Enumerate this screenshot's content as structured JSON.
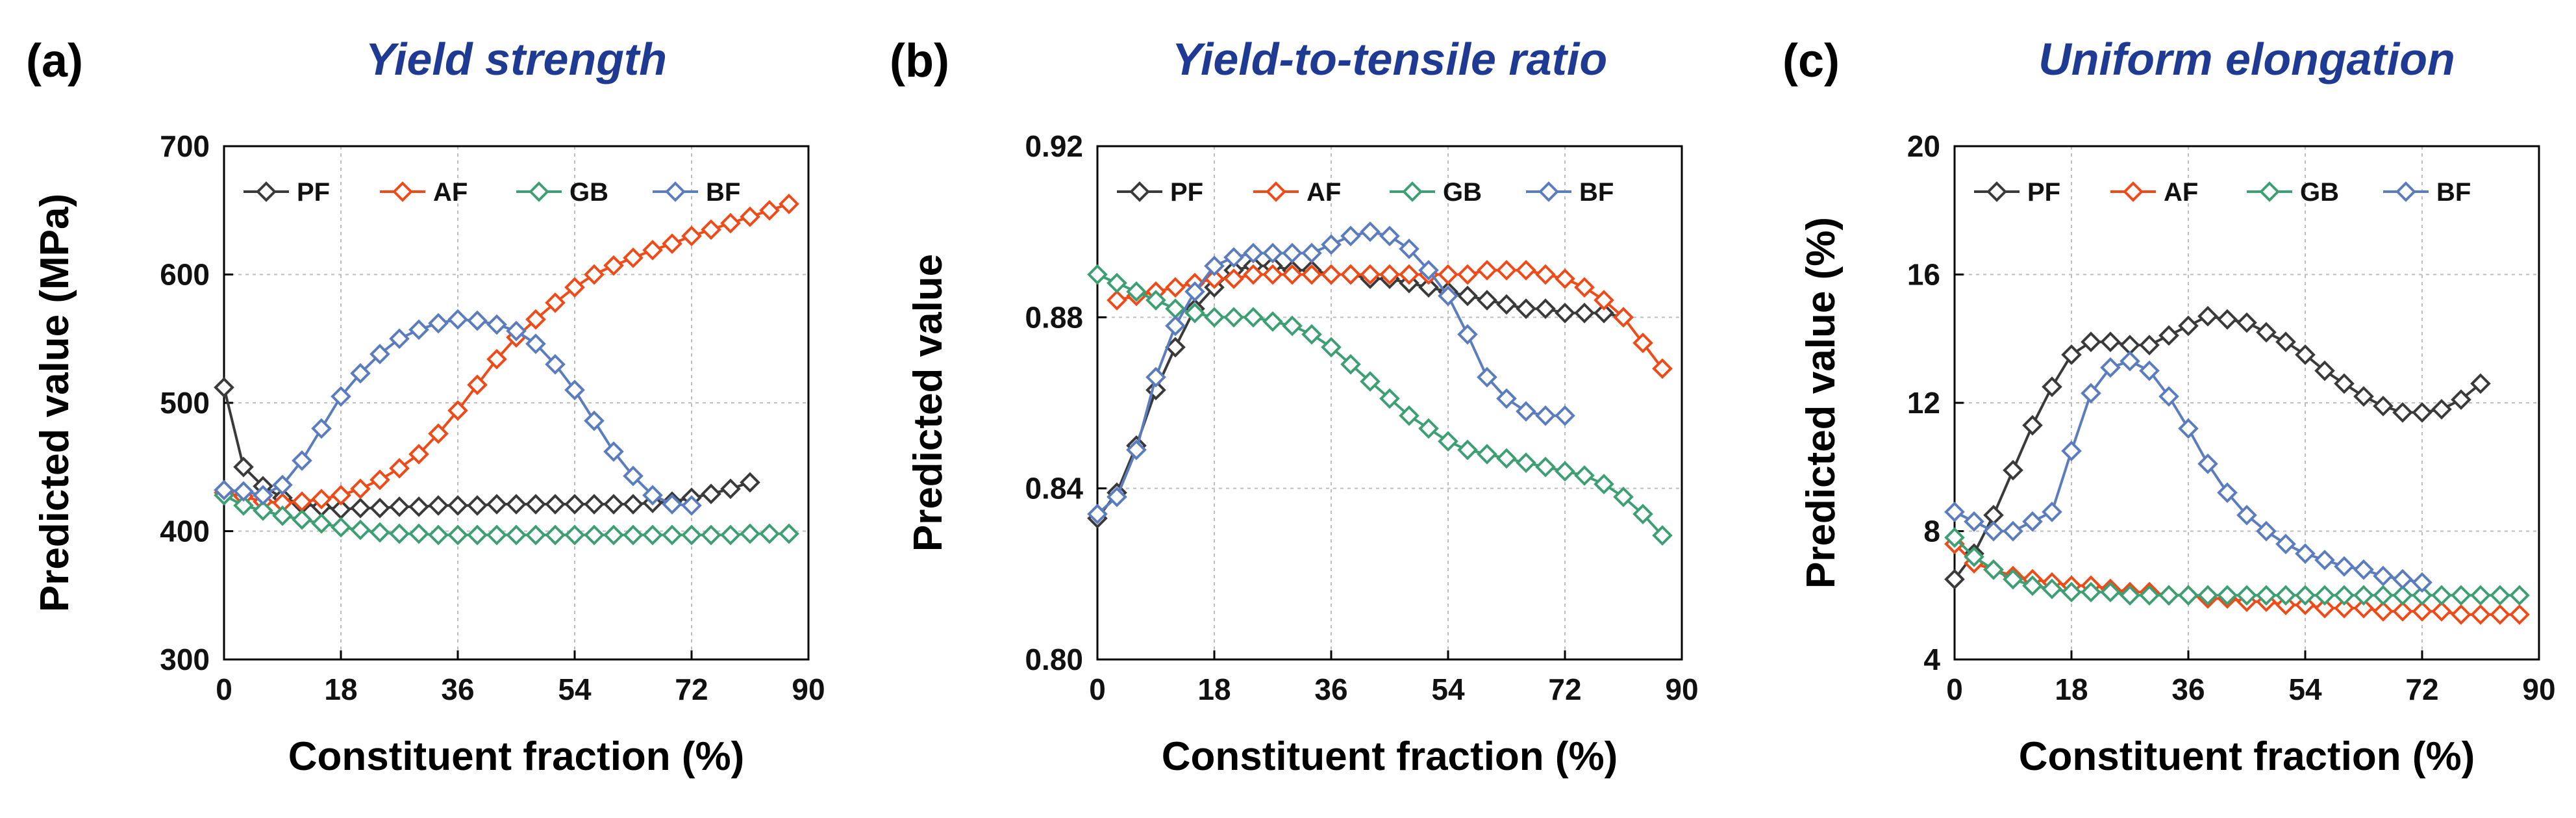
{
  "chart_data": [
    {
      "type": "line",
      "panel_label": "(a)",
      "title": "Yield strength",
      "xlabel": "Constituent fraction (%)",
      "ylabel": "Predicted value (MPa)",
      "xlim": [
        0,
        90
      ],
      "ylim": [
        300,
        700
      ],
      "x_ticks": [
        0,
        18,
        36,
        54,
        72,
        90
      ],
      "y_ticks": [
        300,
        400,
        500,
        600,
        700
      ],
      "x_tick_labels": [
        "0",
        "18",
        "36",
        "54",
        "72",
        "90"
      ],
      "y_tick_labels": [
        "300",
        "400",
        "500",
        "600",
        "700"
      ],
      "grid": true,
      "legend_position": "top",
      "series": [
        {
          "name": "PF",
          "color": "#3a3a3a",
          "x": [
            0,
            3,
            6,
            9,
            12,
            15,
            18,
            21,
            24,
            27,
            30,
            33,
            36,
            39,
            42,
            45,
            48,
            51,
            54,
            57,
            60,
            63,
            66,
            69,
            72,
            75,
            78,
            81
          ],
          "y": [
            512,
            450,
            435,
            426,
            421,
            419,
            417,
            418,
            418,
            419,
            419,
            420,
            420,
            420,
            421,
            421,
            421,
            421,
            421,
            421,
            421,
            421,
            422,
            423,
            426,
            429,
            433,
            438
          ]
        },
        {
          "name": "AF",
          "color": "#ef4a17",
          "x": [
            0,
            3,
            6,
            9,
            12,
            15,
            18,
            21,
            24,
            27,
            30,
            33,
            36,
            39,
            42,
            45,
            48,
            51,
            54,
            57,
            60,
            63,
            66,
            69,
            72,
            75,
            78,
            81,
            84,
            87
          ],
          "y": [
            430,
            427,
            423,
            422,
            423,
            425,
            428,
            433,
            440,
            449,
            460,
            476,
            494,
            514,
            534,
            551,
            565,
            578,
            590,
            600,
            607,
            613,
            619,
            624,
            630,
            635,
            640,
            645,
            650,
            655
          ]
        },
        {
          "name": "GB",
          "color": "#3e9f74",
          "x": [
            0,
            3,
            6,
            9,
            12,
            15,
            18,
            21,
            24,
            27,
            30,
            33,
            36,
            39,
            42,
            45,
            48,
            51,
            54,
            57,
            60,
            63,
            66,
            69,
            72,
            75,
            78,
            81,
            84,
            87
          ],
          "y": [
            428,
            420,
            416,
            412,
            409,
            406,
            403,
            401,
            399,
            398,
            398,
            397,
            397,
            397,
            397,
            397,
            397,
            397,
            397,
            397,
            397,
            397,
            397,
            397,
            397,
            397,
            397,
            398,
            398,
            398
          ]
        },
        {
          "name": "BF",
          "color": "#5b7cbd",
          "x": [
            0,
            3,
            6,
            9,
            12,
            15,
            18,
            21,
            24,
            27,
            30,
            33,
            36,
            39,
            42,
            45,
            48,
            51,
            54,
            57,
            60,
            63,
            66,
            69,
            72
          ],
          "y": [
            432,
            431,
            428,
            436,
            455,
            480,
            505,
            523,
            538,
            550,
            557,
            562,
            565,
            564,
            561,
            556,
            546,
            530,
            510,
            486,
            462,
            443,
            428,
            421,
            420
          ]
        }
      ]
    },
    {
      "type": "line",
      "panel_label": "(b)",
      "title": "Yield-to-tensile ratio",
      "xlabel": "Constituent fraction (%)",
      "ylabel": "Predicted value",
      "xlim": [
        0,
        90
      ],
      "ylim": [
        0.8,
        0.92
      ],
      "x_ticks": [
        0,
        18,
        36,
        54,
        72,
        90
      ],
      "y_ticks": [
        0.8,
        0.84,
        0.88,
        0.92
      ],
      "x_tick_labels": [
        "0",
        "18",
        "36",
        "54",
        "72",
        "90"
      ],
      "y_tick_labels": [
        "0.80",
        "0.84",
        "0.88",
        "0.92"
      ],
      "grid": true,
      "legend_position": "top",
      "series": [
        {
          "name": "PF",
          "color": "#3a3a3a",
          "x": [
            0,
            3,
            6,
            9,
            12,
            15,
            18,
            21,
            24,
            27,
            30,
            33,
            36,
            39,
            42,
            45,
            48,
            51,
            54,
            57,
            60,
            63,
            66,
            69,
            72,
            75,
            78,
            81
          ],
          "y": [
            0.833,
            0.839,
            0.85,
            0.863,
            0.873,
            0.882,
            0.887,
            0.891,
            0.892,
            0.892,
            0.891,
            0.891,
            0.89,
            0.89,
            0.889,
            0.889,
            0.888,
            0.887,
            0.886,
            0.885,
            0.884,
            0.883,
            0.882,
            0.882,
            0.881,
            0.881,
            0.881,
            0.88
          ]
        },
        {
          "name": "AF",
          "color": "#ef4a17",
          "x": [
            3,
            6,
            9,
            12,
            15,
            18,
            21,
            24,
            27,
            30,
            33,
            36,
            39,
            42,
            45,
            48,
            51,
            54,
            57,
            60,
            63,
            66,
            69,
            72,
            75,
            78,
            81,
            84,
            87
          ],
          "y": [
            0.884,
            0.885,
            0.886,
            0.887,
            0.888,
            0.889,
            0.889,
            0.89,
            0.89,
            0.89,
            0.89,
            0.89,
            0.89,
            0.89,
            0.89,
            0.89,
            0.89,
            0.89,
            0.89,
            0.891,
            0.891,
            0.891,
            0.89,
            0.889,
            0.887,
            0.884,
            0.88,
            0.874,
            0.868
          ]
        },
        {
          "name": "GB",
          "color": "#3e9f74",
          "x": [
            0,
            3,
            6,
            9,
            12,
            15,
            18,
            21,
            24,
            27,
            30,
            33,
            36,
            39,
            42,
            45,
            48,
            51,
            54,
            57,
            60,
            63,
            66,
            69,
            72,
            75,
            78,
            81,
            84,
            87
          ],
          "y": [
            0.89,
            0.888,
            0.886,
            0.884,
            0.882,
            0.881,
            0.88,
            0.88,
            0.88,
            0.879,
            0.878,
            0.876,
            0.873,
            0.869,
            0.865,
            0.861,
            0.857,
            0.854,
            0.851,
            0.849,
            0.848,
            0.847,
            0.846,
            0.845,
            0.844,
            0.843,
            0.841,
            0.838,
            0.834,
            0.829
          ]
        },
        {
          "name": "BF",
          "color": "#5b7cbd",
          "x": [
            0,
            3,
            6,
            9,
            12,
            15,
            18,
            21,
            24,
            27,
            30,
            33,
            36,
            39,
            42,
            45,
            48,
            51,
            54,
            57,
            60,
            63,
            66,
            69,
            72
          ],
          "y": [
            0.834,
            0.838,
            0.849,
            0.866,
            0.878,
            0.886,
            0.892,
            0.894,
            0.895,
            0.895,
            0.895,
            0.895,
            0.897,
            0.899,
            0.9,
            0.899,
            0.896,
            0.891,
            0.885,
            0.876,
            0.866,
            0.861,
            0.858,
            0.857,
            0.857
          ]
        }
      ]
    },
    {
      "type": "line",
      "panel_label": "(c)",
      "title": "Uniform elongation",
      "xlabel": "Constituent fraction (%)",
      "ylabel": "Predicted value (%)",
      "xlim": [
        0,
        90
      ],
      "ylim": [
        4,
        20
      ],
      "x_ticks": [
        0,
        18,
        36,
        54,
        72,
        90
      ],
      "y_ticks": [
        4,
        8,
        12,
        16,
        20
      ],
      "x_tick_labels": [
        "0",
        "18",
        "36",
        "54",
        "72",
        "90"
      ],
      "y_tick_labels": [
        "4",
        "8",
        "12",
        "16",
        "20"
      ],
      "grid": true,
      "legend_position": "top",
      "series": [
        {
          "name": "PF",
          "color": "#3a3a3a",
          "x": [
            0,
            3,
            6,
            9,
            12,
            15,
            18,
            21,
            24,
            27,
            30,
            33,
            36,
            39,
            42,
            45,
            48,
            51,
            54,
            57,
            60,
            63,
            66,
            69,
            72,
            75,
            78,
            81
          ],
          "y": [
            6.5,
            7.3,
            8.5,
            9.9,
            11.3,
            12.5,
            13.5,
            13.9,
            13.9,
            13.8,
            13.8,
            14.1,
            14.4,
            14.7,
            14.6,
            14.5,
            14.2,
            13.9,
            13.5,
            13.0,
            12.6,
            12.2,
            11.9,
            11.7,
            11.7,
            11.8,
            12.1,
            12.6
          ]
        },
        {
          "name": "AF",
          "color": "#ef4a17",
          "x": [
            0,
            3,
            6,
            9,
            12,
            15,
            18,
            21,
            24,
            27,
            30,
            33,
            36,
            39,
            42,
            45,
            48,
            51,
            54,
            57,
            60,
            63,
            66,
            69,
            72,
            75,
            78,
            81,
            84,
            87
          ],
          "y": [
            7.6,
            7.0,
            6.8,
            6.6,
            6.5,
            6.4,
            6.3,
            6.3,
            6.2,
            6.1,
            6.1,
            6.0,
            6.0,
            5.9,
            5.9,
            5.8,
            5.8,
            5.7,
            5.7,
            5.6,
            5.6,
            5.6,
            5.5,
            5.5,
            5.5,
            5.5,
            5.4,
            5.4,
            5.4,
            5.4
          ]
        },
        {
          "name": "GB",
          "color": "#3e9f74",
          "x": [
            0,
            3,
            6,
            9,
            12,
            15,
            18,
            21,
            24,
            27,
            30,
            33,
            36,
            39,
            42,
            45,
            48,
            51,
            54,
            57,
            60,
            63,
            66,
            69,
            72,
            75,
            78,
            81,
            84,
            87
          ],
          "y": [
            7.8,
            7.2,
            6.8,
            6.5,
            6.3,
            6.2,
            6.1,
            6.1,
            6.1,
            6.0,
            6.0,
            6.0,
            6.0,
            6.0,
            6.0,
            6.0,
            6.0,
            6.0,
            6.0,
            6.0,
            6.0,
            6.0,
            6.0,
            6.0,
            6.0,
            6.0,
            6.0,
            6.0,
            6.0,
            6.0
          ]
        },
        {
          "name": "BF",
          "color": "#5b7cbd",
          "x": [
            0,
            3,
            6,
            9,
            12,
            15,
            18,
            21,
            24,
            27,
            30,
            33,
            36,
            39,
            42,
            45,
            48,
            51,
            54,
            57,
            60,
            63,
            66,
            69,
            72
          ],
          "y": [
            8.6,
            8.3,
            8.0,
            8.0,
            8.3,
            8.6,
            10.5,
            12.3,
            13.1,
            13.3,
            13.0,
            12.2,
            11.2,
            10.1,
            9.2,
            8.5,
            8.0,
            7.6,
            7.3,
            7.1,
            6.9,
            6.8,
            6.6,
            6.5,
            6.4
          ]
        }
      ]
    }
  ]
}
